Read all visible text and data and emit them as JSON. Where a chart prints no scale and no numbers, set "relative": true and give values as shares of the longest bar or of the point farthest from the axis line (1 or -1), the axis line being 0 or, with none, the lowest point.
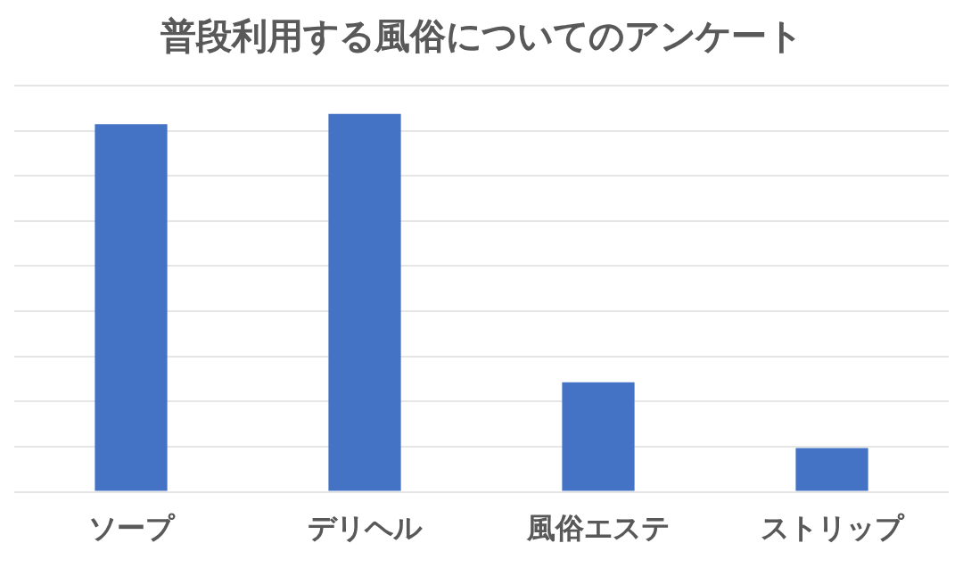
{
  "chart_data": {
    "type": "bar",
    "title": "普段利用する風俗についてのアンケート",
    "categories": [
      "ソープ",
      "デリヘル",
      "風俗エステ",
      "ストリップ"
    ],
    "values": [
      0.973,
      1,
      0.29,
      0.116
    ],
    "color": "#4472c4",
    "relative": true,
    "grid": "y"
  }
}
